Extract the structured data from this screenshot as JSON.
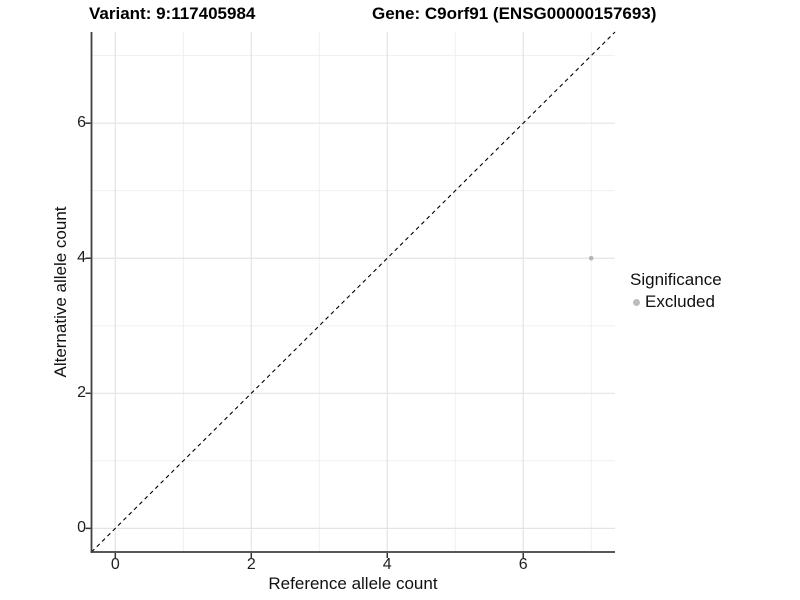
{
  "header": {
    "variant_title": "Variant: 9:117405984",
    "gene_title": "Gene: C9orf91 (ENSG00000157693)"
  },
  "axes": {
    "x_label": "Reference allele count",
    "y_label": "Alternative allele count"
  },
  "legend": {
    "title": "Significance",
    "items": [
      {
        "label": "Excluded",
        "color": "#bdbdbd"
      }
    ]
  },
  "colors": {
    "background": "#ffffff",
    "major_gridline": "#e4e4e4",
    "minor_gridline": "#eeeeee",
    "axis_line": "#404040",
    "tick_mark": "#333333",
    "point": "#b5b5b5",
    "reference_line": "#000000"
  },
  "chart_data": {
    "type": "scatter",
    "title": "Variant: 9:117405984 — Gene: C9orf91 (ENSG00000157693)",
    "xlabel": "Reference allele count",
    "ylabel": "Alternative allele count",
    "xlim": [
      -0.35,
      7.35
    ],
    "ylim": [
      -0.35,
      7.35
    ],
    "x_major_ticks": [
      0,
      2,
      4,
      6
    ],
    "y_major_ticks": [
      0,
      2,
      4,
      6
    ],
    "x_minor_ticks": [
      1,
      3,
      5,
      7
    ],
    "y_minor_ticks": [
      1,
      3,
      5,
      7
    ],
    "grid": "on",
    "legend_position": "right",
    "series": [
      {
        "name": "Excluded",
        "color": "#b5b5b5",
        "points": [
          {
            "x": 7,
            "y": 4
          }
        ]
      }
    ],
    "reference_line": {
      "kind": "identity y=x",
      "style": "dashed",
      "color": "#000000",
      "from": [
        -0.35,
        -0.35
      ],
      "to": [
        7.35,
        7.35
      ]
    }
  }
}
